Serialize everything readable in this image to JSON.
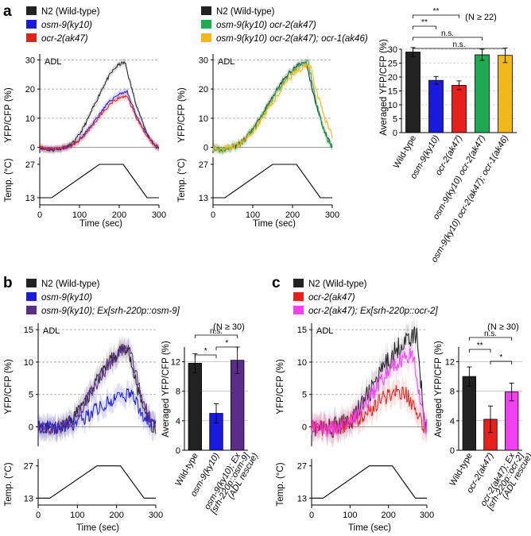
{
  "colors": {
    "wt": "#222222",
    "osm9": "#1a1adc",
    "ocr2": "#e8201c",
    "double": "#1faa52",
    "triple": "#f2b817",
    "rescue_osm9": "#5b2d8a",
    "rescue_ocr2": "#f040f0",
    "grid": "#999999"
  },
  "panels": {
    "a": {
      "letter": "a",
      "legend1": [
        "N2 (Wild-type)",
        "osm-9(ky10)",
        "ocr-2(ak47)"
      ],
      "legend2": [
        "N2 (Wild-type)",
        "osm-9(ky10) ocr-2(ak47)",
        "osm-9(ky10) ocr-2(ak47); ocr-1(ak46)"
      ],
      "trace_label": "ADL",
      "ylabel": "YFP/CFP (%)",
      "temp_label": "Temp. (°C)",
      "xlabel": "Time  (sec)",
      "bar_ylabel": "Averaged YFP/CFP (%)",
      "n_label": "(N ≥ 22)",
      "sig": [
        "**",
        "**",
        "n.s.",
        "n.s."
      ]
    },
    "b": {
      "letter": "b",
      "legend": [
        "N2 (Wild-type)",
        "osm-9(ky10)",
        "osm-9(ky10); Ex[srh-220p::osm-9]"
      ],
      "trace_label": "ADL",
      "ylabel": "YFP/CFP (%)",
      "temp_label": "Temp. (°C)",
      "xlabel": "Time (sec)",
      "bar_ylabel": "Averaged YFP/CFP (%)",
      "n_label": "(N ≥ 30)",
      "sig": [
        "n.s.",
        "*",
        "*"
      ]
    },
    "c": {
      "letter": "c",
      "legend": [
        "N2 (Wild-type)",
        "ocr-2(ak47)",
        "ocr-2(ak47); Ex[srh-220p::ocr-2]"
      ],
      "trace_label": "ADL",
      "ylabel": "YFP/CFP (%)",
      "temp_label": "Temp. (°C)",
      "xlabel": "Time (sec)",
      "bar_ylabel": "Averaged YFP/CFP (%)",
      "n_label": "(N ≥ 30)",
      "sig": [
        "n.s.",
        "**",
        "*"
      ]
    }
  },
  "chart_data": [
    {
      "id": "a-bar",
      "type": "bar",
      "categories": [
        "Wild-type",
        "osm-9(ky10)",
        "ocr-2(ak47)",
        "osm-9(ky10) ocr-2(ak47)",
        "osm-9(ky10) ocr-2(ak47); ocr-1(ak46)"
      ],
      "values": [
        29,
        18.8,
        17,
        28,
        27.8
      ],
      "errors": [
        1.6,
        1.4,
        1.6,
        2.0,
        2.6
      ],
      "ylim": [
        0,
        30
      ],
      "yticks": [
        0,
        5,
        10,
        15,
        20,
        25,
        30
      ]
    },
    {
      "id": "b-bar",
      "type": "bar",
      "categories": [
        "Wild-type",
        "osm-9(ky10)",
        "osm-9(ky10); Ex [srh-220p::osm-9] (ADL rescue)"
      ],
      "values": [
        11.8,
        5,
        12.2
      ],
      "errors": [
        1.3,
        1.3,
        1.8
      ],
      "ylim": [
        0,
        14
      ],
      "yticks": [
        0,
        4,
        8,
        12
      ]
    },
    {
      "id": "c-bar",
      "type": "bar",
      "categories": [
        "Wild-type",
        "ocr-2(ak47)",
        "ocr-2(ak47); Ex [srh-220p::ocr-2] (ADL rescue)"
      ],
      "values": [
        10,
        4.2,
        7.9
      ],
      "errors": [
        1.3,
        1.8,
        1.2
      ],
      "ylim": [
        0,
        14
      ],
      "yticks": [
        0,
        4,
        8,
        12
      ]
    },
    {
      "id": "traces",
      "type": "line",
      "xlim": [
        0,
        300
      ],
      "xticks": [
        0,
        100,
        200,
        300
      ],
      "temp_yticks": [
        13,
        27
      ],
      "temp_profile": {
        "x": [
          0,
          30,
          150,
          210,
          270,
          300
        ],
        "y": [
          13,
          13,
          27,
          27,
          13,
          13
        ]
      },
      "a_ylim": [
        -2,
        32
      ],
      "a_yticks": [
        0,
        10,
        20,
        30
      ],
      "bc_ylim": [
        -3,
        16
      ],
      "bc_yticks": [
        0,
        5,
        10,
        15
      ],
      "series": [
        {
          "panel": "a1",
          "name": "N2 (Wild-type)",
          "peak": 29,
          "peak_x": 215
        },
        {
          "panel": "a1",
          "name": "osm-9(ky10)",
          "peak": 19,
          "peak_x": 220
        },
        {
          "panel": "a1",
          "name": "ocr-2(ak47)",
          "peak": 17.5,
          "peak_x": 220
        },
        {
          "panel": "a2",
          "name": "N2 (Wild-type)",
          "peak": 29,
          "peak_x": 235
        },
        {
          "panel": "a2",
          "name": "osm-9(ky10) ocr-2(ak47)",
          "peak": 29,
          "peak_x": 240
        },
        {
          "panel": "a2",
          "name": "osm-9(ky10) ocr-2(ak47); ocr-1(ak46)",
          "peak": 28,
          "peak_x": 245
        },
        {
          "panel": "b",
          "name": "N2 (Wild-type)",
          "peak": 12,
          "peak_x": 230
        },
        {
          "panel": "b",
          "name": "osm-9(ky10)",
          "peak": 5,
          "peak_x": 240
        },
        {
          "panel": "b",
          "name": "osm-9(ky10); Ex[srh-220p::osm-9]",
          "peak": 12,
          "peak_x": 235
        },
        {
          "panel": "c",
          "name": "N2 (Wild-type)",
          "peak": 14,
          "peak_x": 275
        },
        {
          "panel": "c",
          "name": "ocr-2(ak47)",
          "peak": 5.5,
          "peak_x": 245
        },
        {
          "panel": "c",
          "name": "ocr-2(ak47); Ex[srh-220p::ocr-2]",
          "peak": 11,
          "peak_x": 265
        }
      ]
    }
  ]
}
